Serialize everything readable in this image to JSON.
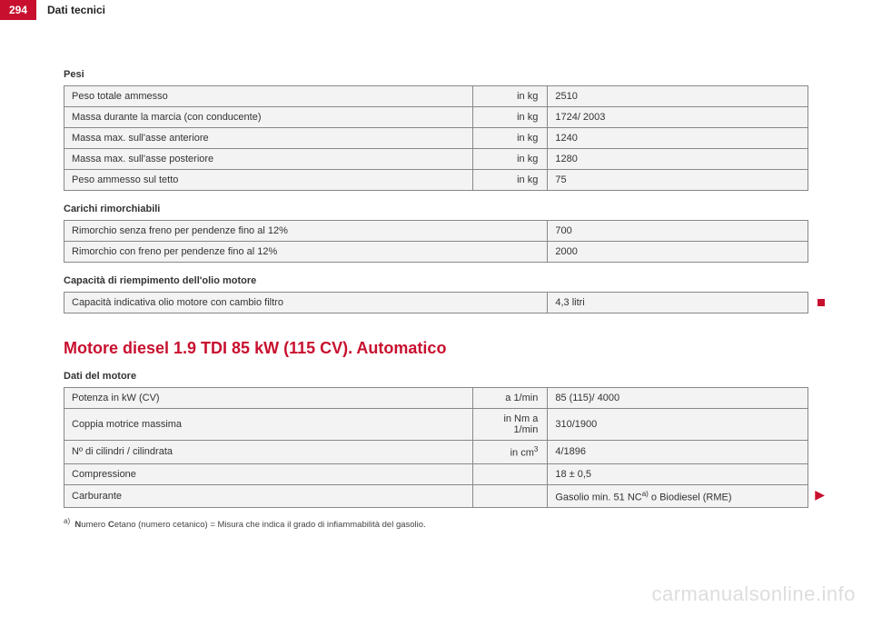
{
  "header": {
    "page_number": "294",
    "section_title": "Dati tecnici"
  },
  "pesi": {
    "label": "Pesi",
    "rows": [
      {
        "label": "Peso totale ammesso",
        "unit": "in kg",
        "value": "2510"
      },
      {
        "label": "Massa durante la marcia (con conducente)",
        "unit": "in kg",
        "value": "1724/ 2003"
      },
      {
        "label": "Massa max. sull'asse anteriore",
        "unit": "in kg",
        "value": "1240"
      },
      {
        "label": "Massa max. sull'asse posteriore",
        "unit": "in kg",
        "value": "1280"
      },
      {
        "label": "Peso ammesso sul tetto",
        "unit": "in kg",
        "value": "75"
      }
    ]
  },
  "carichi": {
    "label": "Carichi rimorchiabili",
    "rows": [
      {
        "label": "Rimorchio senza freno per pendenze fino al 12%",
        "value": "700"
      },
      {
        "label": "Rimorchio con freno per pendenze fino al 12%",
        "value": "2000"
      }
    ]
  },
  "capacita": {
    "label": "Capacità di riempimento dell'olio motore",
    "row": {
      "label": "Capacità indicativa olio motore con cambio filtro",
      "value": "4,3 litri"
    }
  },
  "motor_title": "Motore diesel 1.9 TDI 85 kW (115 CV). Automatico",
  "dati_motore": {
    "label": "Dati del motore",
    "rows": [
      {
        "label": "Potenza in kW (CV)",
        "unit": "a 1/min",
        "value": "85 (115)/ 4000"
      },
      {
        "label": "Coppia motrice massima",
        "unit": "in Nm a 1/min",
        "value": "310/1900"
      },
      {
        "label": "Nº di cilindri / cilindrata",
        "unit": "in cm",
        "unit_sup": "3",
        "value": "4/1896"
      },
      {
        "label": "Compressione",
        "unit": "",
        "value": "18 ± 0,5"
      },
      {
        "label": "Carburante",
        "unit": "",
        "value_html": "Gasolio min. 51 NC<span class=\"sup\">a)</span> o Biodiesel (RME)"
      }
    ]
  },
  "footnote": {
    "marker": "a)",
    "text_html": "<b>N</b>umero <b>C</b>etano (numero cetanico) = Misura che indica il grado di infiammabilità del gasolio."
  },
  "watermark": "carmanualsonline.info",
  "colors": {
    "accent": "#c8102e",
    "row_bg": "#f3f3f3",
    "border": "#888888",
    "watermark": "#dddddd"
  }
}
